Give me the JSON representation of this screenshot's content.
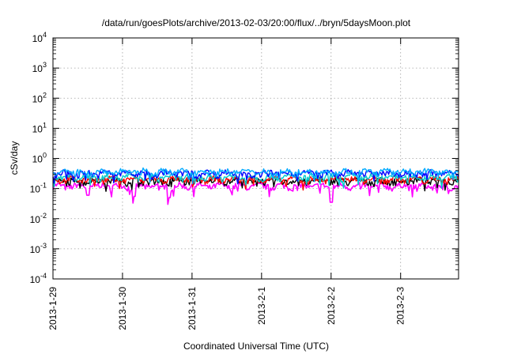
{
  "chart_data": {
    "type": "line",
    "title": "/data/run/goesPlots/archive/2013-02-03/20:00/flux/../bryn/5daysMoon.plot",
    "xlabel": "Coordinated Universal Time (UTC)",
    "ylabel": "cSv/day",
    "yscale": "log",
    "ylim_exponent": [
      -4,
      4
    ],
    "y_ticks": [
      {
        "base": "10",
        "exp": "-4",
        "value": 0.0001
      },
      {
        "base": "10",
        "exp": "-3",
        "value": 0.001
      },
      {
        "base": "10",
        "exp": "-2",
        "value": 0.01
      },
      {
        "base": "10",
        "exp": "-1",
        "value": 0.1
      },
      {
        "base": "10",
        "exp": "0",
        "value": 1
      },
      {
        "base": "10",
        "exp": "1",
        "value": 10
      },
      {
        "base": "10",
        "exp": "2",
        "value": 100
      },
      {
        "base": "10",
        "exp": "3",
        "value": 1000
      },
      {
        "base": "10",
        "exp": "4",
        "value": 10000
      }
    ],
    "x_range": [
      "2013-01-29",
      "2013-02-03 20:00"
    ],
    "x_ticks": [
      "2013-1-29",
      "2013-1-30",
      "2013-1-31",
      "2013-2-1",
      "2013-2-2",
      "2013-2-3"
    ],
    "grid": true,
    "series": [
      {
        "color": "#ff00ff",
        "level": 0.12,
        "dips": [
          {
            "x": "2013-01-29 12:00",
            "value": 0.06
          },
          {
            "x": "2013-01-30 04:00",
            "value": 0.055
          },
          {
            "x": "2013-01-30 16:00",
            "value": 0.05
          },
          {
            "x": "2013-02-02 00:00",
            "value": 0.035
          }
        ]
      },
      {
        "color": "#000000",
        "level": 0.18
      },
      {
        "color": "#ff0000",
        "level": 0.2
      },
      {
        "color": "#00cccc",
        "level": 0.24
      },
      {
        "color": "#0000ff",
        "level": 0.32
      },
      {
        "color": "#00aaff",
        "level": 0.36
      }
    ]
  }
}
